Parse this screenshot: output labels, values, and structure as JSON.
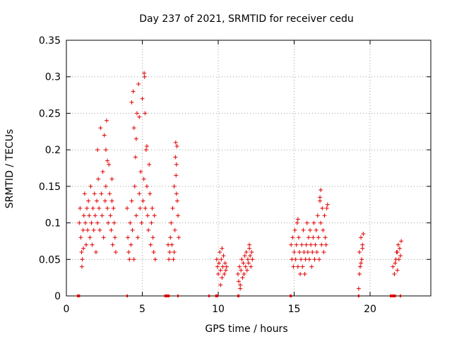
{
  "chart_data": {
    "type": "scatter",
    "title": "Day 237 of 2021, SRMTID for receiver cedu",
    "xlabel": "GPS time / hours",
    "ylabel": "SRMTID / TECUs",
    "xlim": [
      0,
      24
    ],
    "ylim": [
      0,
      0.35
    ],
    "xticks": [
      0,
      5,
      10,
      15,
      20
    ],
    "yticks": [
      0,
      0.05,
      0.1,
      0.15,
      0.2,
      0.25,
      0.3,
      0.35
    ],
    "xtick_labels": [
      "0",
      "5",
      "10",
      "15",
      "20"
    ],
    "ytick_labels": [
      "0",
      "0.05",
      "0.1",
      "0.15",
      "0.2",
      "0.25",
      "0.3",
      "0.35"
    ],
    "grid": true,
    "marker": "+",
    "color": "#e00000",
    "series": [
      {
        "name": "SRMTID",
        "points": [
          [
            0.9,
            0.12
          ],
          [
            0.95,
            0.08
          ],
          [
            1.0,
            0.06
          ],
          [
            1.05,
            0.05
          ],
          [
            1.1,
            0.09
          ],
          [
            1.15,
            0.11
          ],
          [
            1.2,
            0.14
          ],
          [
            1.25,
            0.1
          ],
          [
            1.3,
            0.07
          ],
          [
            1.35,
            0.12
          ],
          [
            1.4,
            0.09
          ],
          [
            1.45,
            0.13
          ],
          [
            1.5,
            0.11
          ],
          [
            1.55,
            0.08
          ],
          [
            1.6,
            0.15
          ],
          [
            1.65,
            0.1
          ],
          [
            1.7,
            0.07
          ],
          [
            1.75,
            0.12
          ],
          [
            1.8,
            0.09
          ],
          [
            1.85,
            0.14
          ],
          [
            1.9,
            0.11
          ],
          [
            1.95,
            0.06
          ],
          [
            2.0,
            0.13
          ],
          [
            2.05,
            0.1
          ],
          [
            2.1,
            0.16
          ],
          [
            2.15,
            0.12
          ],
          [
            2.2,
            0.09
          ],
          [
            2.25,
            0.23
          ],
          [
            2.3,
            0.14
          ],
          [
            2.35,
            0.11
          ],
          [
            2.4,
            0.17
          ],
          [
            2.45,
            0.08
          ],
          [
            2.5,
            0.22
          ],
          [
            2.55,
            0.13
          ],
          [
            2.6,
            0.15
          ],
          [
            2.65,
            0.24
          ],
          [
            2.7,
            0.12
          ],
          [
            2.75,
            0.1
          ],
          [
            2.8,
            0.18
          ],
          [
            2.85,
            0.14
          ],
          [
            2.9,
            0.11
          ],
          [
            2.95,
            0.09
          ],
          [
            3.0,
            0.13
          ],
          [
            3.05,
            0.07
          ],
          [
            3.1,
            0.12
          ],
          [
            3.15,
            0.1
          ],
          [
            3.2,
            0.08
          ],
          [
            3.25,
            0.06
          ],
          [
            0.85,
            0.1
          ],
          [
            1.02,
            0.04
          ],
          [
            1.12,
            0.065
          ],
          [
            2.05,
            0.2
          ],
          [
            2.6,
            0.2
          ],
          [
            2.7,
            0.185
          ],
          [
            3.0,
            0.16
          ],
          [
            4.0,
            0.12
          ],
          [
            4.05,
            0.08
          ],
          [
            4.1,
            0.06
          ],
          [
            4.15,
            0.05
          ],
          [
            4.2,
            0.1
          ],
          [
            4.25,
            0.07
          ],
          [
            4.3,
            0.13
          ],
          [
            4.35,
            0.09
          ],
          [
            4.4,
            0.28
          ],
          [
            4.45,
            0.23
          ],
          [
            4.5,
            0.15
          ],
          [
            4.55,
            0.19
          ],
          [
            4.6,
            0.11
          ],
          [
            4.65,
            0.25
          ],
          [
            4.7,
            0.08
          ],
          [
            4.75,
            0.29
          ],
          [
            4.8,
            0.14
          ],
          [
            4.85,
            0.12
          ],
          [
            4.9,
            0.17
          ],
          [
            4.95,
            0.1
          ],
          [
            5.0,
            0.27
          ],
          [
            5.05,
            0.13
          ],
          [
            5.1,
            0.16
          ],
          [
            5.15,
            0.3
          ],
          [
            5.2,
            0.12
          ],
          [
            5.25,
            0.2
          ],
          [
            5.3,
            0.15
          ],
          [
            5.35,
            0.11
          ],
          [
            5.4,
            0.09
          ],
          [
            5.45,
            0.18
          ],
          [
            5.5,
            0.14
          ],
          [
            5.55,
            0.07
          ],
          [
            5.6,
            0.1
          ],
          [
            5.65,
            0.12
          ],
          [
            5.7,
            0.08
          ],
          [
            5.75,
            0.06
          ],
          [
            5.8,
            0.11
          ],
          [
            5.85,
            0.05
          ],
          [
            4.3,
            0.265
          ],
          [
            4.6,
            0.215
          ],
          [
            5.12,
            0.305
          ],
          [
            5.18,
            0.25
          ],
          [
            5.3,
            0.205
          ],
          [
            4.45,
            0.05
          ],
          [
            4.8,
            0.245
          ],
          [
            6.7,
            0.07
          ],
          [
            6.75,
            0.05
          ],
          [
            6.8,
            0.06
          ],
          [
            6.85,
            0.08
          ],
          [
            6.9,
            0.1
          ],
          [
            6.95,
            0.07
          ],
          [
            7.0,
            0.12
          ],
          [
            7.05,
            0.05
          ],
          [
            7.1,
            0.15
          ],
          [
            7.15,
            0.09
          ],
          [
            7.2,
            0.21
          ],
          [
            7.25,
            0.18
          ],
          [
            7.3,
            0.13
          ],
          [
            7.35,
            0.11
          ],
          [
            7.4,
            0.08
          ],
          [
            7.18,
            0.19
          ],
          [
            7.22,
            0.165
          ],
          [
            7.28,
            0.205
          ],
          [
            7.1,
            0.06
          ],
          [
            7.25,
            0.14
          ],
          [
            9.9,
            0.05
          ],
          [
            9.95,
            0.04
          ],
          [
            10.0,
            0.03
          ],
          [
            10.05,
            0.045
          ],
          [
            10.1,
            0.06
          ],
          [
            10.15,
            0.035
          ],
          [
            10.2,
            0.05
          ],
          [
            10.25,
            0.025
          ],
          [
            10.3,
            0.04
          ],
          [
            10.35,
            0.055
          ],
          [
            10.4,
            0.03
          ],
          [
            10.45,
            0.045
          ],
          [
            10.5,
            0.035
          ],
          [
            10.55,
            0.04
          ],
          [
            10.15,
            0.015
          ],
          [
            10.25,
            0.065
          ],
          [
            11.3,
            0.03
          ],
          [
            11.35,
            0.02
          ],
          [
            11.4,
            0.04
          ],
          [
            11.45,
            0.015
          ],
          [
            11.5,
            0.035
          ],
          [
            11.55,
            0.05
          ],
          [
            11.6,
            0.025
          ],
          [
            11.65,
            0.045
          ],
          [
            11.7,
            0.03
          ],
          [
            11.75,
            0.055
          ],
          [
            11.8,
            0.04
          ],
          [
            11.85,
            0.06
          ],
          [
            11.9,
            0.035
          ],
          [
            11.95,
            0.05
          ],
          [
            12.0,
            0.045
          ],
          [
            12.05,
            0.07
          ],
          [
            12.1,
            0.055
          ],
          [
            12.15,
            0.04
          ],
          [
            12.2,
            0.06
          ],
          [
            12.25,
            0.05
          ],
          [
            11.45,
            0.01
          ],
          [
            12.05,
            0.065
          ],
          [
            14.8,
            0.07
          ],
          [
            14.85,
            0.05
          ],
          [
            14.9,
            0.08
          ],
          [
            14.95,
            0.04
          ],
          [
            15.0,
            0.06
          ],
          [
            15.05,
            0.09
          ],
          [
            15.1,
            0.05
          ],
          [
            15.15,
            0.07
          ],
          [
            15.2,
            0.1
          ],
          [
            15.25,
            0.04
          ],
          [
            15.3,
            0.08
          ],
          [
            15.35,
            0.06
          ],
          [
            15.4,
            0.03
          ],
          [
            15.45,
            0.05
          ],
          [
            15.5,
            0.07
          ],
          [
            15.55,
            0.04
          ],
          [
            15.6,
            0.09
          ],
          [
            15.65,
            0.06
          ],
          [
            15.7,
            0.03
          ],
          [
            15.75,
            0.05
          ],
          [
            15.8,
            0.07
          ],
          [
            15.85,
            0.1
          ],
          [
            15.9,
            0.06
          ],
          [
            15.95,
            0.08
          ],
          [
            16.0,
            0.05
          ],
          [
            16.05,
            0.09
          ],
          [
            16.1,
            0.07
          ],
          [
            16.15,
            0.04
          ],
          [
            16.2,
            0.06
          ],
          [
            16.25,
            0.08
          ],
          [
            16.3,
            0.1
          ],
          [
            16.35,
            0.05
          ],
          [
            16.4,
            0.07
          ],
          [
            16.45,
            0.09
          ],
          [
            16.5,
            0.06
          ],
          [
            16.55,
            0.11
          ],
          [
            16.6,
            0.08
          ],
          [
            16.65,
            0.05
          ],
          [
            16.7,
            0.13
          ],
          [
            16.75,
            0.1
          ],
          [
            16.8,
            0.07
          ],
          [
            16.85,
            0.12
          ],
          [
            16.9,
            0.09
          ],
          [
            16.95,
            0.06
          ],
          [
            17.0,
            0.11
          ],
          [
            17.05,
            0.08
          ],
          [
            17.1,
            0.07
          ],
          [
            17.15,
            0.12
          ],
          [
            15.25,
            0.105
          ],
          [
            16.75,
            0.145
          ],
          [
            17.2,
            0.125
          ],
          [
            16.7,
            0.135
          ],
          [
            19.3,
            0.06
          ],
          [
            19.35,
            0.04
          ],
          [
            19.4,
            0.08
          ],
          [
            19.45,
            0.05
          ],
          [
            19.5,
            0.07
          ],
          [
            19.55,
            0.085
          ],
          [
            19.3,
            0.03
          ],
          [
            19.25,
            0.01
          ],
          [
            19.4,
            0.045
          ],
          [
            19.5,
            0.065
          ],
          [
            21.5,
            0.04
          ],
          [
            21.6,
            0.03
          ],
          [
            21.7,
            0.05
          ],
          [
            21.75,
            0.06
          ],
          [
            21.8,
            0.035
          ],
          [
            21.85,
            0.07
          ],
          [
            21.9,
            0.05
          ],
          [
            21.95,
            0.065
          ],
          [
            22.0,
            0.055
          ],
          [
            22.05,
            0.075
          ],
          [
            21.65,
            0.045
          ],
          [
            21.8,
            0.06
          ]
        ]
      }
    ],
    "zero_segments": [
      [
        0.7,
        0.9
      ],
      [
        3.95,
        4.05
      ],
      [
        6.45,
        6.8
      ],
      [
        7.3,
        7.4
      ],
      [
        9.35,
        9.45
      ],
      [
        9.8,
        10.0
      ],
      [
        11.25,
        11.4
      ],
      [
        14.7,
        14.85
      ],
      [
        19.2,
        19.3
      ],
      [
        21.3,
        21.7
      ],
      [
        21.95,
        22.05
      ]
    ]
  }
}
